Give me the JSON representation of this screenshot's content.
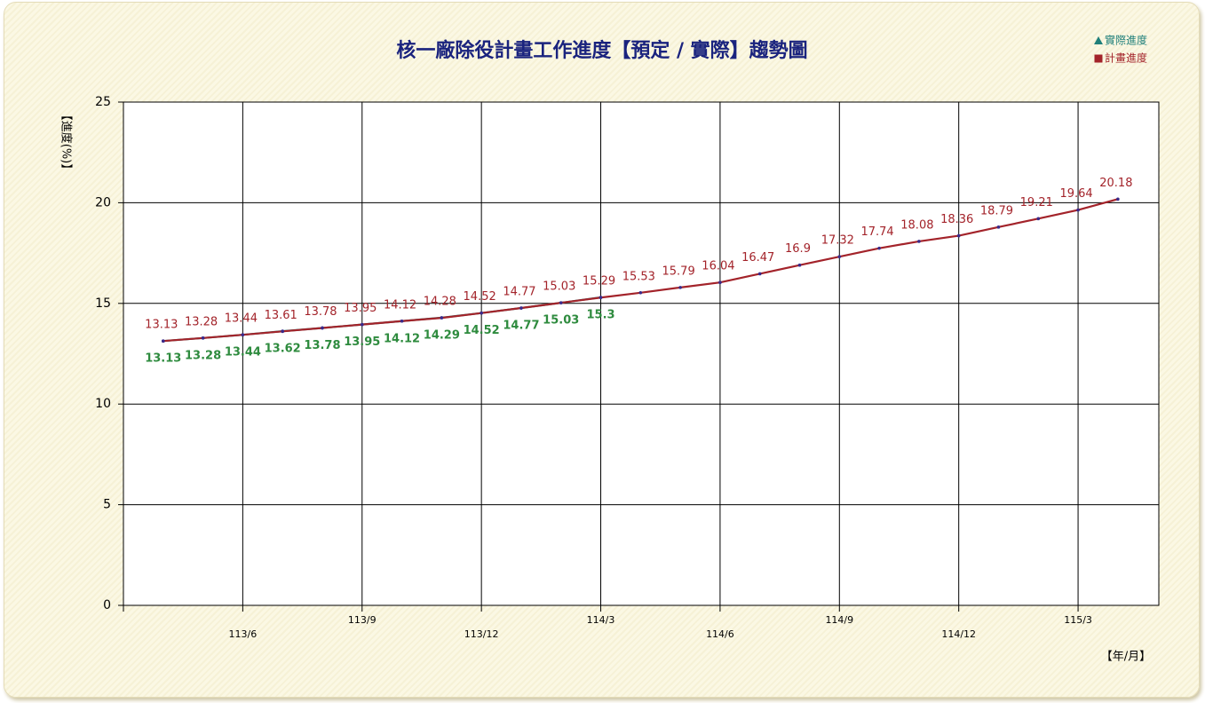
{
  "chart_data": {
    "type": "line",
    "title": "核一廠除役計畫工作進度【預定 / 實際】趨勢圖",
    "y_label": "【進度(%)】",
    "x_label": "【年/月】",
    "categories": [
      null,
      null,
      "113/6",
      null,
      null,
      "113/9",
      null,
      null,
      "113/12",
      null,
      null,
      "114/3",
      null,
      null,
      "114/6",
      null,
      null,
      "114/9",
      null,
      null,
      "114/12",
      null,
      null,
      "115/3",
      null
    ],
    "series": [
      {
        "name": "實際進度",
        "color": "#1f7f7a",
        "label_color": "#2e8b3e",
        "values": [
          13.13,
          13.28,
          13.44,
          13.62,
          13.78,
          13.95,
          14.12,
          14.29,
          14.52,
          14.77,
          15.03,
          15.3,
          null,
          null,
          null,
          null,
          null,
          null,
          null,
          null,
          null,
          null,
          null,
          null,
          null
        ]
      },
      {
        "name": "計畫進度",
        "color": "#a3232a",
        "label_color": "#a3232a",
        "values": [
          13.13,
          13.28,
          13.44,
          13.61,
          13.78,
          13.95,
          14.12,
          14.28,
          14.52,
          14.77,
          15.03,
          15.29,
          15.53,
          15.79,
          16.04,
          16.47,
          16.9,
          17.32,
          17.74,
          18.08,
          18.36,
          18.79,
          19.21,
          19.64,
          20.18
        ]
      }
    ],
    "ylim": [
      0,
      25
    ],
    "yticks": [
      0,
      5,
      10,
      15,
      20,
      25
    ],
    "grid": true,
    "legend": "top-right"
  }
}
